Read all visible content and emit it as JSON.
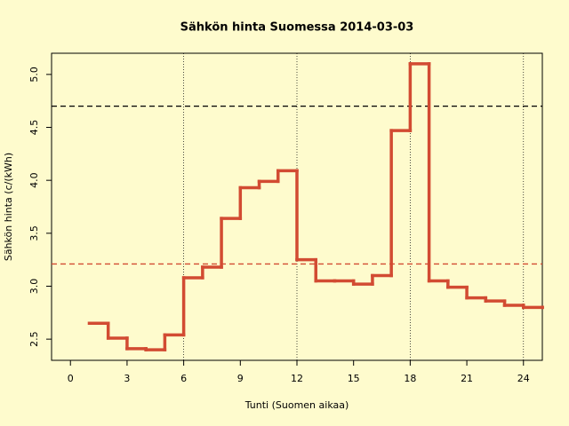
{
  "chart_data": {
    "type": "step",
    "title": "Sähkön hinta Suomessa 2014-03-03",
    "x_label": "Tunti (Suomen aikaa)",
    "y_label": "Sähkön hinta (c/(kWh)",
    "x": [
      1,
      2,
      3,
      4,
      5,
      6,
      7,
      8,
      9,
      10,
      11,
      12,
      13,
      14,
      15,
      16,
      17,
      18,
      19,
      20,
      21,
      22,
      23,
      24,
      25
    ],
    "values": [
      2.65,
      2.51,
      2.41,
      2.4,
      2.54,
      3.08,
      3.18,
      3.64,
      3.93,
      3.99,
      4.09,
      3.25,
      3.05,
      3.05,
      3.02,
      3.1,
      4.47,
      5.1,
      3.05,
      2.99,
      2.89,
      2.86,
      2.82,
      2.8,
      2.8
    ],
    "color": "#d24b32",
    "xlim": [
      -1,
      25
    ],
    "ylim": [
      2.3,
      5.2
    ],
    "xticks": [
      0,
      3,
      6,
      9,
      12,
      15,
      18,
      21,
      24
    ],
    "yticks": [
      2.5,
      {
        "value": 3.0,
        "label": "3.0"
      },
      3.5,
      {
        "value": 4.0,
        "label": "4.0"
      },
      4.5,
      {
        "value": 5.0,
        "label": "5.0"
      }
    ],
    "vlines": [
      6,
      12,
      18,
      24
    ],
    "reference_lines": [
      {
        "value": 4.7,
        "color": "#000000"
      },
      {
        "value": 3.21,
        "color": "#d24b32"
      }
    ]
  }
}
